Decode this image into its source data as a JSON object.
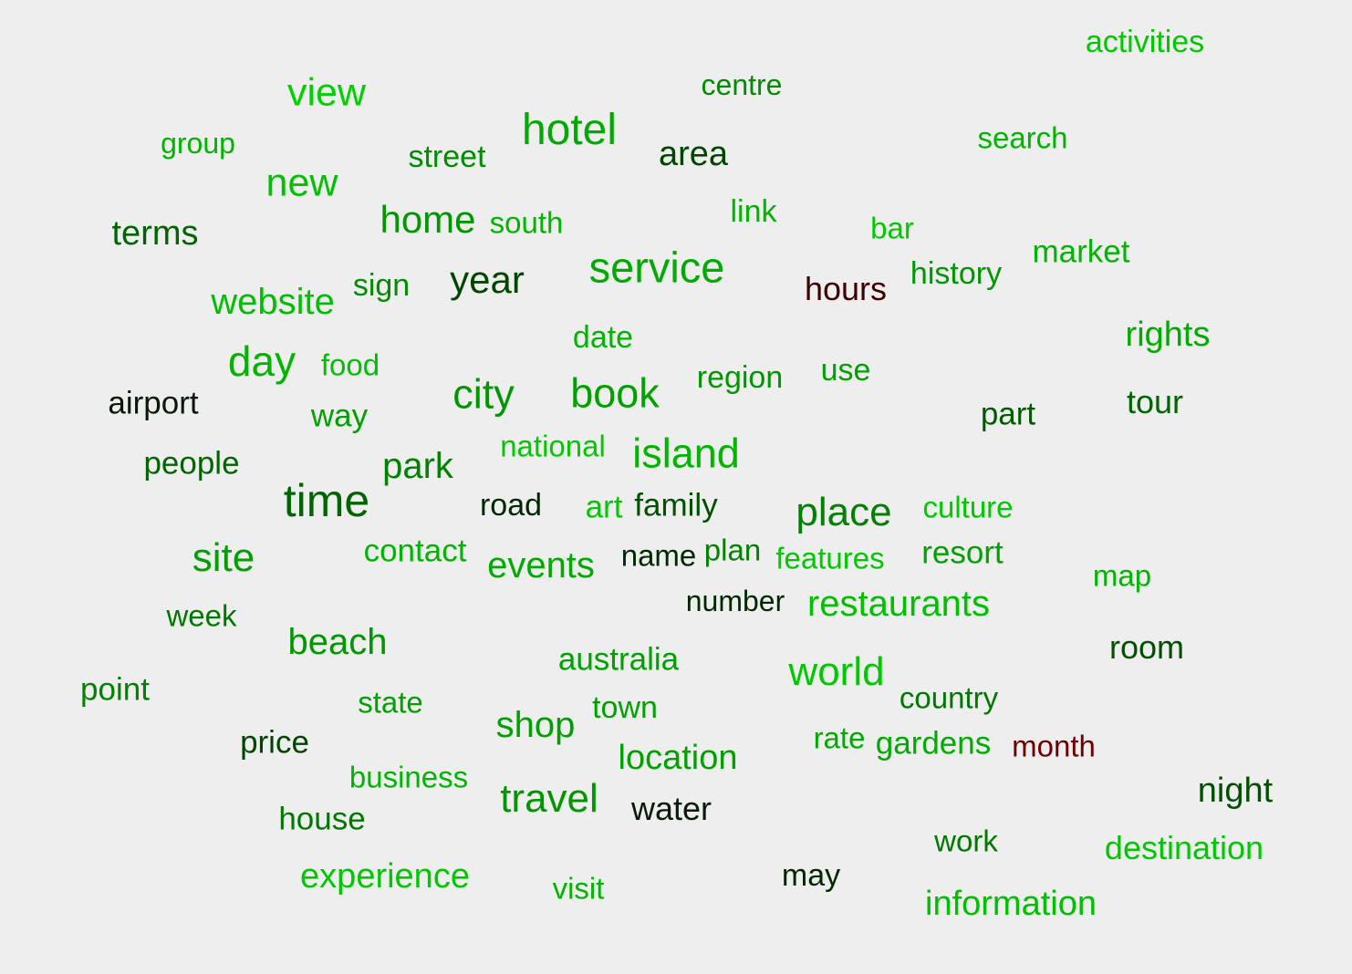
{
  "palette": {
    "background": "#eeeeee",
    "bright_green": "#00c800",
    "mid_green": "#00a000",
    "dark_green": "#006400",
    "very_dark_green": "#003200",
    "near_black": "#0a1a0a",
    "dark_red": "#3c0000",
    "maroon": "#6e0000"
  },
  "words": [
    {
      "text": "activities",
      "color": "#00c800"
    },
    {
      "text": "centre",
      "color": "#008c00"
    },
    {
      "text": "view",
      "color": "#00d000"
    },
    {
      "text": "group",
      "color": "#00b400"
    },
    {
      "text": "hotel",
      "color": "#00aa00"
    },
    {
      "text": "search",
      "color": "#00b400"
    },
    {
      "text": "street",
      "color": "#008c00"
    },
    {
      "text": "area",
      "color": "#004600"
    },
    {
      "text": "new",
      "color": "#00c000"
    },
    {
      "text": "terms",
      "color": "#006400"
    },
    {
      "text": "home",
      "color": "#009600"
    },
    {
      "text": "south",
      "color": "#00b400"
    },
    {
      "text": "link",
      "color": "#00b400"
    },
    {
      "text": "bar",
      "color": "#00c800"
    },
    {
      "text": "market",
      "color": "#00b400"
    },
    {
      "text": "service",
      "color": "#00aa00"
    },
    {
      "text": "year",
      "color": "#004600"
    },
    {
      "text": "sign",
      "color": "#008c00"
    },
    {
      "text": "hours",
      "color": "#3c0000"
    },
    {
      "text": "history",
      "color": "#009600"
    },
    {
      "text": "website",
      "color": "#00be00"
    },
    {
      "text": "rights",
      "color": "#00aa00"
    },
    {
      "text": "date",
      "color": "#00b400"
    },
    {
      "text": "day",
      "color": "#00b400"
    },
    {
      "text": "food",
      "color": "#00be00"
    },
    {
      "text": "use",
      "color": "#00a000"
    },
    {
      "text": "region",
      "color": "#009600"
    },
    {
      "text": "city",
      "color": "#009600"
    },
    {
      "text": "book",
      "color": "#00a000"
    },
    {
      "text": "airport",
      "color": "#0a1a0a"
    },
    {
      "text": "tour",
      "color": "#006400"
    },
    {
      "text": "part",
      "color": "#005a00"
    },
    {
      "text": "way",
      "color": "#00a000"
    },
    {
      "text": "national",
      "color": "#00c800"
    },
    {
      "text": "people",
      "color": "#006400"
    },
    {
      "text": "island",
      "color": "#00b400"
    },
    {
      "text": "park",
      "color": "#008200"
    },
    {
      "text": "time",
      "color": "#006400"
    },
    {
      "text": "road",
      "color": "#002800"
    },
    {
      "text": "art",
      "color": "#00c800"
    },
    {
      "text": "family",
      "color": "#005000"
    },
    {
      "text": "place",
      "color": "#008200"
    },
    {
      "text": "culture",
      "color": "#00c800"
    },
    {
      "text": "site",
      "color": "#00a000"
    },
    {
      "text": "contact",
      "color": "#00b400"
    },
    {
      "text": "events",
      "color": "#00aa00"
    },
    {
      "text": "name",
      "color": "#002800"
    },
    {
      "text": "plan",
      "color": "#008200"
    },
    {
      "text": "features",
      "color": "#00c800"
    },
    {
      "text": "resort",
      "color": "#00a000"
    },
    {
      "text": "map",
      "color": "#00b400"
    },
    {
      "text": "number",
      "color": "#002800"
    },
    {
      "text": "restaurants",
      "color": "#00be00"
    },
    {
      "text": "week",
      "color": "#007800"
    },
    {
      "text": "beach",
      "color": "#009600"
    },
    {
      "text": "room",
      "color": "#005000"
    },
    {
      "text": "australia",
      "color": "#00a000"
    },
    {
      "text": "world",
      "color": "#00c800"
    },
    {
      "text": "point",
      "color": "#008200"
    },
    {
      "text": "state",
      "color": "#00a000"
    },
    {
      "text": "country",
      "color": "#007800"
    },
    {
      "text": "town",
      "color": "#00a000"
    },
    {
      "text": "shop",
      "color": "#00a000"
    },
    {
      "text": "price",
      "color": "#004600"
    },
    {
      "text": "rate",
      "color": "#00aa00"
    },
    {
      "text": "gardens",
      "color": "#00aa00"
    },
    {
      "text": "month",
      "color": "#6e0000"
    },
    {
      "text": "location",
      "color": "#00a000"
    },
    {
      "text": "business",
      "color": "#00b400"
    },
    {
      "text": "night",
      "color": "#005000"
    },
    {
      "text": "travel",
      "color": "#009600"
    },
    {
      "text": "water",
      "color": "#0a1a0a"
    },
    {
      "text": "house",
      "color": "#007800"
    },
    {
      "text": "work",
      "color": "#007800"
    },
    {
      "text": "destination",
      "color": "#00c800"
    },
    {
      "text": "experience",
      "color": "#00c800"
    },
    {
      "text": "visit",
      "color": "#00b400"
    },
    {
      "text": "may",
      "color": "#002800"
    },
    {
      "text": "information",
      "color": "#00be00"
    }
  ]
}
